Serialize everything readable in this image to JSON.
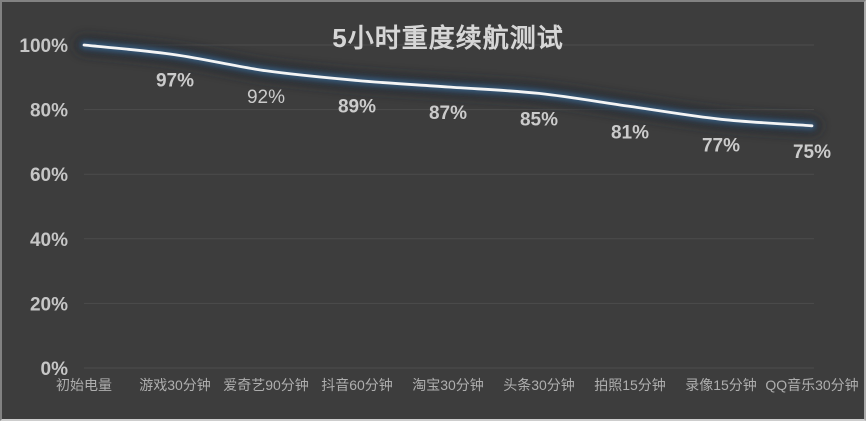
{
  "chart_style": {
    "background": "#3d3d3d",
    "frame_border": "#8f8f8f",
    "grid_color": "#4d4d4d",
    "line_color": "#f4f4f4",
    "glow_color": "#3c678f",
    "shadow_color": "#24282d",
    "title_color": "#d6d6d6",
    "y_tick_color": "#c6c6c6",
    "x_tick_color": "#aeaeae",
    "data_label_color": "#cbcbcb"
  },
  "chart_data": {
    "type": "line",
    "title": "5小时重度续航测试",
    "categories": [
      "初始电量",
      "游戏30分钟",
      "爱奇艺90分钟",
      "抖音60分钟",
      "淘宝30分钟",
      "头条30分钟",
      "拍照15分钟",
      "录像15分钟",
      "QQ音乐30分钟"
    ],
    "values": [
      100,
      97,
      92,
      89,
      87,
      85,
      81,
      77,
      75
    ],
    "data_labels": [
      {
        "text": "",
        "bold": true
      },
      {
        "text": "97%",
        "bold": true
      },
      {
        "text": "92%",
        "bold": false
      },
      {
        "text": "89%",
        "bold": true
      },
      {
        "text": "87%",
        "bold": true
      },
      {
        "text": "85%",
        "bold": true
      },
      {
        "text": "81%",
        "bold": true
      },
      {
        "text": "77%",
        "bold": true
      },
      {
        "text": "75%",
        "bold": true
      }
    ],
    "y_ticks": [
      {
        "label": "100%",
        "value": 100
      },
      {
        "label": "80%",
        "value": 80
      },
      {
        "label": "60%",
        "value": 60
      },
      {
        "label": "40%",
        "value": 40
      },
      {
        "label": "20%",
        "value": 20
      },
      {
        "label": "0%",
        "value": 0
      }
    ],
    "xlabel": "",
    "ylabel": "",
    "ylim": [
      0,
      100
    ],
    "grid": true,
    "legend": false
  }
}
